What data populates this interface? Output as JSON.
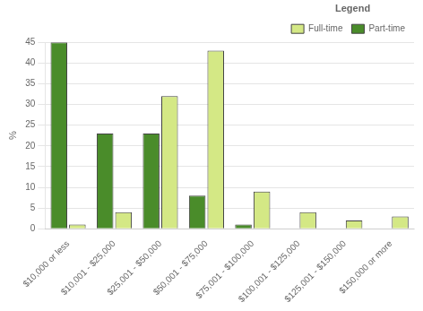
{
  "chart_data": {
    "type": "bar",
    "categories": [
      "$10,000 or less",
      "$10,001 - $25,000",
      "$25,001 - $50,000",
      "$50,001 - $75,000",
      "$75,001 - $100,000",
      "$100,001 - $125,000",
      "$125,001 - $150,000",
      "$150,000 or more"
    ],
    "series": [
      {
        "name": "Part-time",
        "color": "#4a8c2a",
        "values": [
          45,
          23,
          23,
          8,
          1,
          0,
          0,
          0
        ]
      },
      {
        "name": "Full-time",
        "color": "#d4e885",
        "values": [
          1,
          4,
          32,
          43,
          9,
          4,
          2,
          3
        ]
      }
    ],
    "ylabel": "%",
    "ylim": [
      0,
      45
    ],
    "yticks": [
      0,
      5,
      10,
      15,
      20,
      25,
      30,
      35,
      40,
      45
    ],
    "grid": "y",
    "legend": "upper right",
    "legend_title": "Legend"
  }
}
